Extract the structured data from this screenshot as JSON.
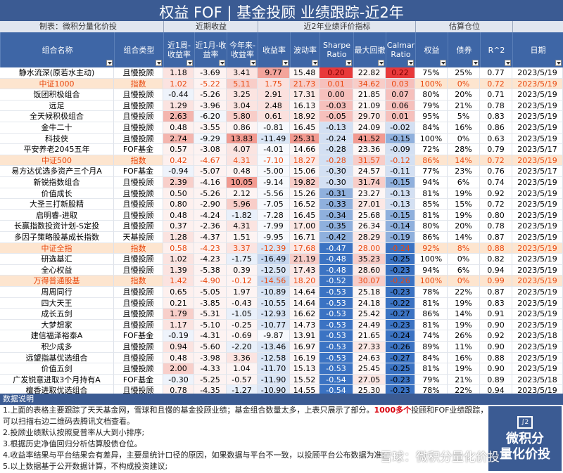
{
  "title": "权益 FOF | 基金投顾 业绩跟踪-近2年",
  "maker": "制表：微积分量化价投",
  "groups": {
    "recent": "近期收益",
    "eval": "近2年业绩评价指标",
    "est": "估算仓位"
  },
  "headers": [
    "组合名称",
    "组合类型",
    "近1周-收益率",
    "近1月-收益率",
    "今年来-收益率",
    "收益率",
    "波动率",
    "Sharpe Ratio",
    "最大回撤",
    "Calmar Ratio",
    "权益",
    "债券",
    "R^2",
    "日期"
  ],
  "colors": {
    "header": "#3e66a6",
    "title": "#3b5b93",
    "highlight_text": "#e8480e",
    "highlight_bg": "#fde5cf",
    "red_strong": "#e8393a",
    "red_light": "#f6c0bc",
    "blue_strong": "#3b73c3",
    "blue_mid": "#8fb0dd"
  },
  "rows": [
    [
      "静水流深(原若水主动)",
      "且慢投顾",
      "1.18",
      "-3.69",
      "3.41",
      "9.77",
      "15.48",
      "0.20",
      "22.82",
      "0.22",
      "75%",
      "25%",
      "0.77",
      "2023/5/19"
    ],
    [
      "中证1000",
      "指数",
      "1.02",
      "-5.22",
      "5.11",
      "1.75",
      "21.73",
      "0.01",
      "34.62",
      "0.03",
      "100%",
      "0%",
      "0.72",
      "2023/5/19"
    ],
    [
      "饭团积极组合",
      "且慢投顾",
      "-0.44",
      "-5.26",
      "3.25",
      "2.91",
      "17.31",
      "0.00",
      "21.85",
      "0.07",
      "80%",
      "20%",
      "0.71",
      "2023/5/19"
    ],
    [
      "远足",
      "且慢投顾",
      "1.29",
      "-3.96",
      "3.04",
      "2.48",
      "16.13",
      "-0.03",
      "21.09",
      "0.06",
      "79%",
      "21%",
      "0.78",
      "2023/5/19"
    ],
    [
      "全天候积极组合",
      "且慢投顾",
      "2.63",
      "-6.20",
      "5.80",
      "0.61",
      "18.92",
      "-0.05",
      "29.70",
      "0.01",
      "95%",
      "5%",
      "0.83",
      "2023/5/19"
    ],
    [
      "金牛二十",
      "且慢投顾",
      "0.48",
      "-3.55",
      "0.86",
      "-0.81",
      "16.45",
      "-0.13",
      "24.09",
      "-0.02",
      "84%",
      "16%",
      "0.86",
      "2023/5/19"
    ],
    [
      "科技侠",
      "且慢投顾",
      "2.74",
      "-9.29",
      "13.83",
      "-11.49",
      "25.31",
      "-0.24",
      "41.52",
      "-0.15",
      "100%",
      "0%",
      "0.63",
      "2023/5/19"
    ],
    [
      "平安养老2045五年",
      "FOF基金",
      "0.57",
      "-3.08",
      "4.07",
      "-4.01",
      "14.66",
      "-0.28",
      "23.36",
      "-0.09",
      "72%",
      "28%",
      "0.79",
      "2023/5/17"
    ],
    [
      "中证500",
      "指数",
      "0.42",
      "-4.67",
      "4.31",
      "-7.10",
      "18.27",
      "-0.28",
      "31.57",
      "-0.12",
      "86%",
      "14%",
      "0.72",
      "2023/5/19"
    ],
    [
      "易方达优选多资产三个月A",
      "FOF基金",
      "-0.94",
      "-5.07",
      "0.48",
      "-5.00",
      "15.06",
      "-0.30",
      "24.57",
      "-0.11",
      "77%",
      "23%",
      "0.76",
      "2023/5/17"
    ],
    [
      "新锐指数组合",
      "且慢投顾",
      "2.39",
      "-4.16",
      "10.05",
      "-9.14",
      "19.82",
      "-0.30",
      "31.74",
      "-0.15",
      "94%",
      "6%",
      "0.74",
      "2023/5/19"
    ],
    [
      "价值成长",
      "且慢投顾",
      "0.50",
      "-5.26",
      "2.12",
      "-5.56",
      "15.26",
      "-0.31",
      "23.27",
      "-0.13",
      "81%",
      "19%",
      "0.92",
      "2023/5/19"
    ],
    [
      "大圣三打新股精",
      "且慢投顾",
      "0.80",
      "-2.90",
      "5.96",
      "-7.05",
      "16.52",
      "-0.33",
      "27.01",
      "-0.13",
      "85%",
      "15%",
      "0.72",
      "2023/5/19"
    ],
    [
      "启明睿-进取",
      "且慢投顾",
      "0.48",
      "-4.24",
      "-1.82",
      "-7.28",
      "16.45",
      "-0.34",
      "25.68",
      "-0.15",
      "81%",
      "19%",
      "0.80",
      "2023/5/19"
    ],
    [
      "长赢指数投资计划-S定投",
      "且慢投顾",
      "0.37",
      "-2.36",
      "4.31",
      "-7.99",
      "17.00",
      "-0.35",
      "26.34",
      "-0.14",
      "80%",
      "20%",
      "0.78",
      "2023/5/19"
    ],
    [
      "多因子策略股基成长指数",
      "天基投顾",
      "1.28",
      "-4.37",
      "1.51",
      "-9.95",
      "16.71",
      "-0.42",
      "28.29",
      "-0.19",
      "86%",
      "14%",
      "0.87",
      "2023/5/19"
    ],
    [
      "中证全指",
      "指数",
      "0.58",
      "-4.23",
      "3.37",
      "-12.39",
      "17.68",
      "-0.47",
      "28.00",
      "-0.24",
      "92%",
      "8%",
      "0.88",
      "2023/5/19"
    ],
    [
      "研选基汇",
      "且慢投顾",
      "1.02",
      "-4.23",
      "-1.75",
      "-16.49",
      "21.19",
      "-0.48",
      "35.23",
      "-0.25",
      "100%",
      "0%",
      "0.82",
      "2023/5/19"
    ],
    [
      "全心权益",
      "且慢投顾",
      "1.39",
      "-5.38",
      "0.39",
      "-12.50",
      "17.43",
      "-0.48",
      "28.60",
      "-0.23",
      "94%",
      "6%",
      "0.94",
      "2023/5/19"
    ],
    [
      "万得普通股基",
      "指数",
      "1.42",
      "-4.90",
      "-0.12",
      "-14.56",
      "18.20",
      "-0.52",
      "30.07",
      "-0.26",
      "100%",
      "0%",
      "0.99",
      "2023/5/19"
    ],
    [
      "周周同行",
      "且慢投顾",
      "0.65",
      "-5.05",
      "1.97",
      "-10.89",
      "14.64",
      "-0.53",
      "25.18",
      "-0.23",
      "78%",
      "22%",
      "0.87",
      "2023/5/19"
    ],
    [
      "四大天王",
      "且慢投顾",
      "0.21",
      "-3.85",
      "-0.43",
      "-10.55",
      "14.64",
      "-0.53",
      "24.18",
      "-0.22",
      "81%",
      "19%",
      "0.83",
      "2023/5/19"
    ],
    [
      "成长五剑",
      "且慢投顾",
      "1.79",
      "-5.31",
      "-1.05",
      "-12.93",
      "16.62",
      "-0.53",
      "25.42",
      "-0.27",
      "86%",
      "14%",
      "0.91",
      "2023/5/19"
    ],
    [
      "大梦想家",
      "且慢投顾",
      "1.17",
      "-5.10",
      "-0.25",
      "-10.77",
      "14.73",
      "-0.53",
      "24.49",
      "-0.23",
      "81%",
      "19%",
      "0.90",
      "2023/5/19"
    ],
    [
      "建信福泽裕泰A",
      "FOF基金",
      "-0.19",
      "-4.31",
      "-0.69",
      "-9.87",
      "13.91",
      "-0.53",
      "21.65",
      "-0.24",
      "74%",
      "26%",
      "0.92",
      "2023/5/18"
    ],
    [
      "积少成多",
      "且慢投顾",
      "0.94",
      "-5.60",
      "-2.20",
      "-13.46",
      "16.97",
      "-0.53",
      "27.33",
      "-0.26",
      "89%",
      "11%",
      "0.90",
      "2023/5/19"
    ],
    [
      "远望指基优选组合",
      "且慢投顾",
      "0.48",
      "-3.98",
      "3.36",
      "-12.58",
      "16.19",
      "-0.53",
      "24.63",
      "-0.27",
      "84%",
      "16%",
      "0.88",
      "2023/5/19"
    ],
    [
      "价值五剑",
      "且慢投顾",
      "2.00",
      "-4.33",
      "1.04",
      "-11.70",
      "15.13",
      "-0.53",
      "25.45",
      "-0.25",
      "81%",
      "19%",
      "0.90",
      "2023/5/19"
    ],
    [
      "广发锐意进取3个月持有A",
      "FOF基金",
      "-0.30",
      "-5.25",
      "-0.57",
      "-11.90",
      "15.52",
      "-0.54",
      "27.05",
      "-0.23",
      "79%",
      "21%",
      "0.89",
      "2023/5/18"
    ],
    [
      "檀香进取优选组合",
      "且慢投顾",
      "0.78",
      "-4.35",
      "-1.27",
      "-10.90",
      "14.55",
      "-0.54",
      "25.30",
      "-0.23",
      "78%",
      "22%",
      "0.94",
      "2023/5/19"
    ]
  ],
  "highlight_rows": [
    1,
    8,
    16,
    19
  ],
  "notes_title": "数据说明",
  "notes": [
    {
      "pre": "1.上面的表格主要跟踪了天天基金网，雪球和且慢的基金投顾业绩；基金组合数量太多，上表只展示了部分。",
      "red": "1000多个",
      "post": "投顾和FOF业绩跟踪，可以扫描右边二维码去腾讯文档查看。"
    },
    {
      "pre": "2.投顾业绩默认按照夏普率从大到小排序;",
      "red": "",
      "post": ""
    },
    {
      "pre": "3.根据历史净值回归分析估算股债仓位。",
      "red": "",
      "post": ""
    },
    {
      "pre": "4.收益率结果与平台结果会有差异，主要是统计口径的原因，如果数据与平台不一致，以投顾平台公布数据为准;",
      "red": "",
      "post": ""
    },
    {
      "pre": "5.以上数据基于公开数据计算，不构成投资建议;",
      "red": "",
      "post": ""
    }
  ],
  "logo": {
    "mark": "∫2",
    "line1": "微积分",
    "line2": "量化价投"
  },
  "watermark": "雪球：微积分量化价投"
}
